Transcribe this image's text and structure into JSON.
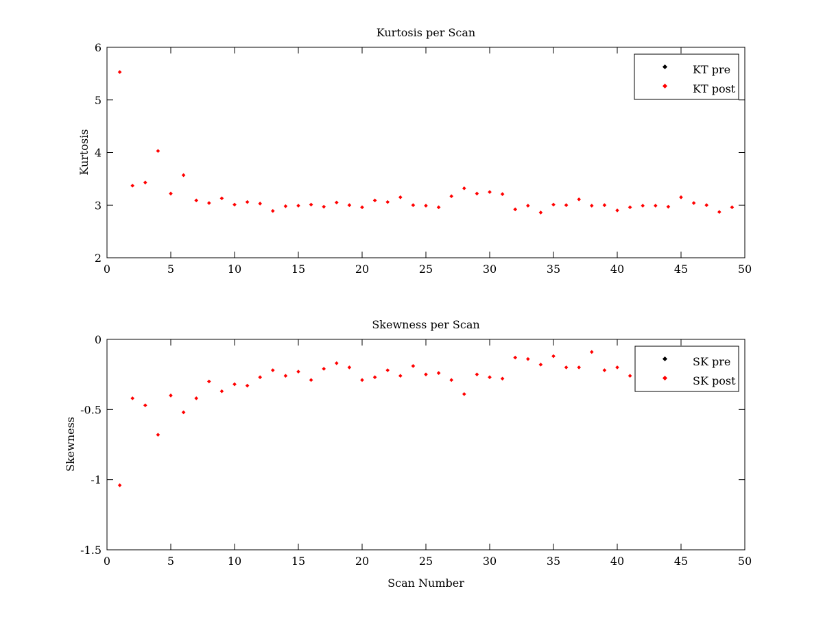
{
  "chart_data": [
    {
      "type": "scatter",
      "title": "Kurtosis per Scan",
      "xlabel": "",
      "ylabel": "Kurtosis",
      "xlim": [
        0,
        50
      ],
      "ylim": [
        2,
        6
      ],
      "xticks": [
        0,
        5,
        10,
        15,
        20,
        25,
        30,
        35,
        40,
        45,
        50
      ],
      "yticks": [
        2,
        3,
        4,
        5,
        6
      ],
      "grid": false,
      "legend_position": "top-right",
      "series": [
        {
          "name": "KT pre",
          "color": "#000000",
          "x": [],
          "y": []
        },
        {
          "name": "KT post",
          "color": "#ff0000",
          "x": [
            1,
            2,
            3,
            4,
            5,
            6,
            7,
            8,
            9,
            10,
            11,
            12,
            13,
            14,
            15,
            16,
            17,
            18,
            19,
            20,
            21,
            22,
            23,
            24,
            25,
            26,
            27,
            28,
            29,
            30,
            31,
            32,
            33,
            34,
            35,
            36,
            37,
            38,
            39,
            40,
            41,
            42,
            43,
            44,
            45,
            46,
            47,
            48,
            49
          ],
          "y": [
            5.53,
            3.37,
            3.43,
            4.03,
            3.22,
            3.57,
            3.09,
            3.04,
            3.13,
            3.01,
            3.06,
            3.03,
            2.89,
            2.98,
            2.99,
            3.01,
            2.97,
            3.05,
            3.0,
            2.96,
            3.09,
            3.06,
            3.15,
            3.0,
            2.99,
            2.96,
            3.17,
            3.32,
            3.22,
            3.25,
            3.21,
            2.92,
            2.99,
            2.86,
            3.01,
            3.0,
            3.11,
            2.99,
            3.0,
            2.9,
            2.96,
            2.99,
            2.99,
            2.97,
            3.15,
            3.04,
            3.0,
            2.87,
            2.96
          ]
        }
      ]
    },
    {
      "type": "scatter",
      "title": "Skewness per Scan",
      "xlabel": "Scan Number",
      "ylabel": "Skewness",
      "xlim": [
        0,
        50
      ],
      "ylim": [
        -1.5,
        0
      ],
      "xticks": [
        0,
        5,
        10,
        15,
        20,
        25,
        30,
        35,
        40,
        45,
        50
      ],
      "yticks": [
        -1.5,
        -1,
        -0.5,
        0
      ],
      "grid": false,
      "legend_position": "top-right",
      "series": [
        {
          "name": "SK pre",
          "color": "#000000",
          "x": [],
          "y": []
        },
        {
          "name": "SK post",
          "color": "#ff0000",
          "x": [
            1,
            2,
            3,
            4,
            5,
            6,
            7,
            8,
            9,
            10,
            11,
            12,
            13,
            14,
            15,
            16,
            17,
            18,
            19,
            20,
            21,
            22,
            23,
            24,
            25,
            26,
            27,
            28,
            29,
            30,
            31,
            32,
            33,
            34,
            35,
            36,
            37,
            38,
            39,
            40,
            41
          ],
          "y": [
            -1.04,
            -0.42,
            -0.47,
            -0.68,
            -0.4,
            -0.52,
            -0.42,
            -0.3,
            -0.37,
            -0.32,
            -0.33,
            -0.27,
            -0.22,
            -0.26,
            -0.23,
            -0.29,
            -0.21,
            -0.17,
            -0.2,
            -0.29,
            -0.27,
            -0.22,
            -0.26,
            -0.19,
            -0.25,
            -0.24,
            -0.29,
            -0.39,
            -0.25,
            -0.27,
            -0.28,
            -0.13,
            -0.14,
            -0.18,
            -0.12,
            -0.2,
            -0.2,
            -0.09,
            -0.22,
            -0.2,
            -0.26
          ]
        }
      ]
    }
  ]
}
